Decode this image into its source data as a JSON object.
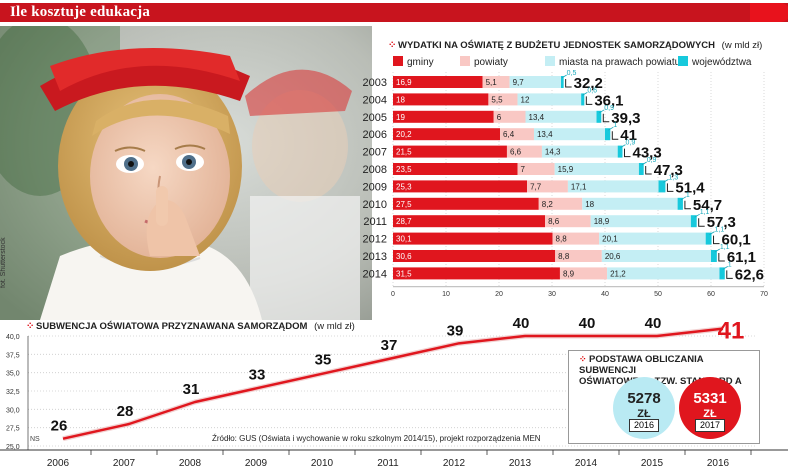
{
  "header": {
    "title": "Ile kosztuje edukacja"
  },
  "photo": {
    "credit": "fot. Shutterstock"
  },
  "expenditure_chart": {
    "title": "WYDATKI NA OŚWIATĘ Z BUDŻETU JEDNOSTEK SAMORZĄDOWYCH",
    "unit": "(w mld zł)",
    "legend": [
      "gminy",
      "powiaty",
      "miasta na prawach powiatu",
      "województwa"
    ],
    "colors": [
      "#e0161e",
      "#f9c8c4",
      "#c4eef4",
      "#17c9dc"
    ],
    "x_ticks": [
      "0",
      "10",
      "20",
      "30",
      "40",
      "50",
      "60",
      "70"
    ]
  },
  "subsidy_chart": {
    "title": "SUBWENCJA OŚWIATOWA PRZYZNAWANA SAMORZĄDOM",
    "unit": "(w mld zł)",
    "y_ticks": [
      "40,0",
      "37,5",
      "35,0",
      "32,5",
      "30,0",
      "27,5",
      "25,0"
    ],
    "ns_label": "NS",
    "source": "Źródło: GUS (Oświata i wychowanie w roku szkolnym 2014/15), projekt rozporządzenia MEN"
  },
  "standard": {
    "title_line1": "PODSTAWA OBLICZANIA SUBWENCJI",
    "title_line2": "OŚWIATOWEJ – TZW. STANDARD A",
    "items": [
      {
        "value": "5278",
        "unit": "ZŁ",
        "year": "2016",
        "color": "#b9eaf3"
      },
      {
        "value": "5331",
        "unit": "ZŁ",
        "year": "2017",
        "color": "#e0161e"
      }
    ]
  },
  "chart_data": [
    {
      "type": "bar",
      "stacked": true,
      "orientation": "horizontal",
      "title": "WYDATKI NA OŚWIATĘ Z BUDŻETU JEDNOSTEK SAMORZĄDOWYCH",
      "unit": "(w mld zł)",
      "categories": [
        "2003",
        "2004",
        "2005",
        "2006",
        "2007",
        "2008",
        "2009",
        "2010",
        "2011",
        "2012",
        "2013",
        "2014"
      ],
      "series": [
        {
          "name": "gminy",
          "values": [
            16.9,
            18,
            19,
            20.2,
            21.5,
            23.5,
            25.3,
            27.5,
            28.7,
            30.1,
            30.6,
            31.5
          ],
          "labels": [
            "16,9",
            "18",
            "19",
            "20,2",
            "21,5",
            "23,5",
            "25,3",
            "27,5",
            "28,7",
            "30,1",
            "30,6",
            "31,5"
          ]
        },
        {
          "name": "powiaty",
          "values": [
            5.1,
            5.5,
            6,
            6.4,
            6.6,
            7,
            7.7,
            8.2,
            8.6,
            8.8,
            8.8,
            8.9
          ],
          "labels": [
            "5,1",
            "5,5",
            "6",
            "6,4",
            "6,6",
            "7",
            "7,7",
            "8,2",
            "8,6",
            "8,8",
            "8,8",
            "8,9"
          ]
        },
        {
          "name": "miasta na prawach powiatu",
          "values": [
            9.7,
            12,
            13.4,
            13.4,
            14.3,
            15.9,
            17.1,
            18,
            18.9,
            20.1,
            20.6,
            21.2
          ],
          "labels": [
            "9,7",
            "12",
            "13,4",
            "13,4",
            "14,3",
            "15,9",
            "17,1",
            "18",
            "18,9",
            "20,1",
            "20,6",
            "21,2"
          ]
        },
        {
          "name": "województwa",
          "values": [
            0.5,
            0.6,
            0.9,
            1,
            0.9,
            0.9,
            1.3,
            1,
            1.1,
            1.1,
            1.1,
            1
          ],
          "labels": [
            "0,5",
            "0,6",
            "0,9",
            "1",
            "0,9",
            "0,9",
            "1,3",
            "1",
            "1,1",
            "1,1",
            "1,1",
            "1"
          ]
        }
      ],
      "totals": [
        32.2,
        36.1,
        39.3,
        41,
        43.3,
        47.3,
        51.4,
        54.7,
        57.3,
        60.1,
        61.1,
        62.6
      ],
      "total_labels": [
        "32,2",
        "36,1",
        "39,3",
        "41",
        "43,3",
        "47,3",
        "51,4",
        "54,7",
        "57,3",
        "60,1",
        "61,1",
        "62,6"
      ],
      "xlim": [
        0,
        70
      ],
      "grid": true,
      "legend_position": "top"
    },
    {
      "type": "line",
      "title": "SUBWENCJA OŚWIATOWA PRZYZNAWANA SAMORZĄDOM",
      "unit": "(w mld zł)",
      "x": [
        "2006",
        "2007",
        "2008",
        "2009",
        "2010",
        "2011",
        "2012",
        "2013",
        "2014",
        "2015",
        "2016"
      ],
      "values": [
        26,
        28,
        31,
        33,
        35,
        37,
        39,
        40,
        40,
        40,
        41
      ],
      "value_labels": [
        "26",
        "28",
        "31",
        "33",
        "35",
        "37",
        "39",
        "40",
        "40",
        "40",
        "41"
      ],
      "ylim": [
        25,
        40
      ],
      "grid": true
    }
  ]
}
